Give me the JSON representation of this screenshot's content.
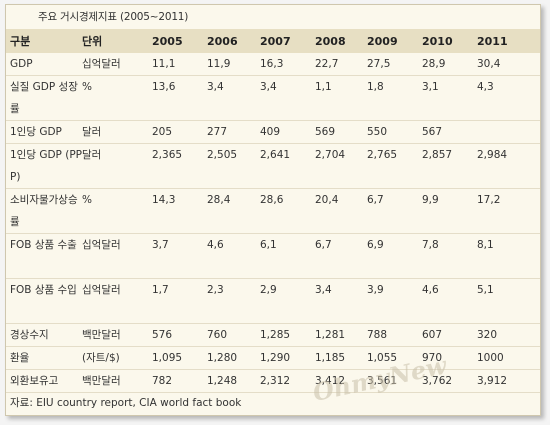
{
  "caption": "주요 거시경제지표 (2005~2011)",
  "headers": [
    "구분",
    "단위",
    "2005",
    "2006",
    "2007",
    "2008",
    "2009",
    "2010",
    "2011"
  ],
  "rows": [
    {
      "label": "GDP",
      "unit": "십억달러",
      "values": [
        "11,1",
        "11,9",
        "16,3",
        "22,7",
        "27,5",
        "28,9",
        "30,4"
      ]
    },
    {
      "label": "실질 GDP 성장률",
      "unit": "%",
      "values": [
        "13,6",
        "3,4",
        "3,4",
        "1,1",
        "1,8",
        "3,1",
        "4,3"
      ]
    },
    {
      "label": "1인당 GDP",
      "unit": "달러",
      "values": [
        "205",
        "277",
        "409",
        "569",
        "550",
        "567",
        ""
      ]
    },
    {
      "label": "1인당 GDP (PPP)",
      "unit": "달러",
      "values": [
        "2,365",
        "2,505",
        "2,641",
        "2,704",
        "2,765",
        "2,857",
        "2,984"
      ]
    },
    {
      "label": "소비자물가상승률",
      "unit": "%",
      "values": [
        "14,3",
        "28,4",
        "28,6",
        "20,4",
        "6,7",
        "9,9",
        "17,2"
      ]
    },
    {
      "label": "FOB 상품 수출",
      "unit": "십억달러",
      "values": [
        "3,7",
        "4,6",
        "6,1",
        "6,7",
        "6,9",
        "7,8",
        "8,1"
      ]
    },
    {
      "label": "FOB 상품 수입",
      "unit": "십억달러",
      "values": [
        "1,7",
        "2,3",
        "2,9",
        "3,4",
        "3,9",
        "4,6",
        "5,1"
      ]
    },
    {
      "label": "경상수지",
      "unit": "백만달러",
      "values": [
        "576",
        "760",
        "1,285",
        "1,281",
        "788",
        "607",
        "320"
      ]
    },
    {
      "label": "환율",
      "unit": "(자트/$)",
      "values": [
        "1,095",
        "1,280",
        "1,290",
        "1,185",
        "1,055",
        "970",
        "1000"
      ]
    },
    {
      "label": "외환보유고",
      "unit": "백만달러",
      "values": [
        "782",
        "1,248",
        "2,312",
        "3,412",
        "3,561",
        "3,762",
        "3,912"
      ]
    }
  ],
  "source": "자료: EIU country report, CIA world fact book",
  "watermark": "OhmyNews"
}
